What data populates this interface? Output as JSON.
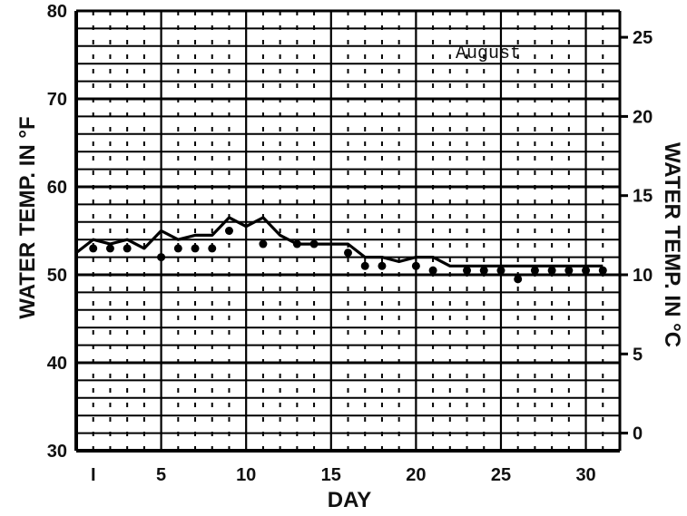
{
  "chart_data": {
    "type": "line",
    "title": "",
    "annotation": "August",
    "xlabel": "DAY",
    "ylabel_left": "WATER TEMP. IN °F",
    "ylabel_right": "WATER TEMP. IN °C",
    "xlim": [
      0,
      32
    ],
    "ylim_left": [
      30,
      80
    ],
    "ylim_right": [
      -1.11,
      26.67
    ],
    "x_ticks": [
      {
        "value": 1,
        "label": "I"
      },
      {
        "value": 5,
        "label": "5"
      },
      {
        "value": 10,
        "label": "10"
      },
      {
        "value": 15,
        "label": "15"
      },
      {
        "value": 20,
        "label": "20"
      },
      {
        "value": 25,
        "label": "25"
      },
      {
        "value": 30,
        "label": "30"
      }
    ],
    "y_ticks_left": [
      {
        "value": 30,
        "label": "30"
      },
      {
        "value": 40,
        "label": "40"
      },
      {
        "value": 50,
        "label": "50"
      },
      {
        "value": 60,
        "label": "60"
      },
      {
        "value": 70,
        "label": "70"
      },
      {
        "value": 80,
        "label": "80"
      }
    ],
    "y_ticks_right": [
      {
        "value": 0,
        "label": "0"
      },
      {
        "value": 5,
        "label": "5"
      },
      {
        "value": 10,
        "label": "10"
      },
      {
        "value": 15,
        "label": "15"
      },
      {
        "value": 20,
        "label": "20"
      },
      {
        "value": 25,
        "label": "25"
      }
    ],
    "grid": true,
    "series": [
      {
        "style": "line",
        "x": [
          0,
          1,
          2,
          3,
          4,
          5,
          6,
          7,
          8,
          9,
          10,
          11,
          12,
          13,
          14,
          15,
          16,
          17,
          18,
          19,
          20,
          21,
          22,
          23,
          24,
          25,
          26,
          27,
          28,
          29,
          30,
          31
        ],
        "values": [
          52.5,
          54,
          53.5,
          54,
          53,
          55,
          54,
          54.5,
          54.5,
          56.5,
          55.5,
          56.5,
          54.5,
          53.5,
          53.5,
          53.5,
          53.5,
          52,
          52,
          51.5,
          52,
          52,
          51,
          51,
          51,
          51,
          51,
          51,
          51,
          51,
          51,
          51
        ]
      },
      {
        "style": "points",
        "x": [
          1,
          2,
          3,
          5,
          6,
          7,
          8,
          9,
          11,
          13,
          14,
          16,
          17,
          18,
          20,
          21,
          23,
          24,
          25,
          26,
          27,
          28,
          29,
          30,
          31
        ],
        "values": [
          53,
          53,
          53,
          52,
          53,
          53,
          53,
          55,
          53.5,
          53.5,
          53.5,
          52.5,
          51,
          51,
          51,
          50.5,
          50.5,
          50.5,
          50.5,
          49.5,
          50.5,
          50.5,
          50.5,
          50.5,
          50.5
        ]
      }
    ]
  }
}
